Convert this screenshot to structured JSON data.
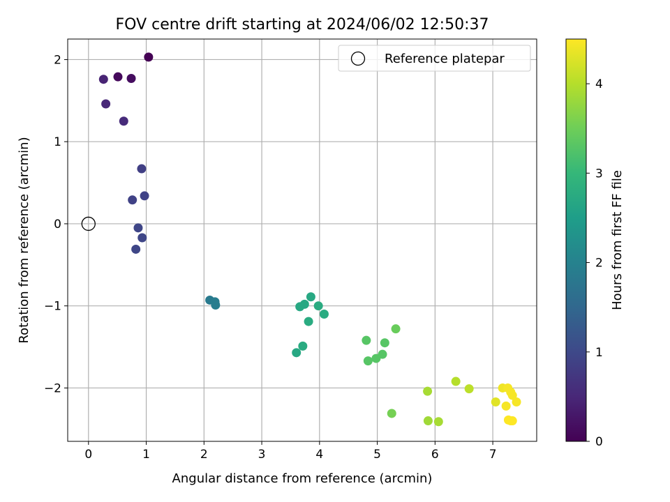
{
  "chart_data": {
    "type": "scatter",
    "title": "FOV centre drift starting at 2024/06/02 12:50:37",
    "xlabel": "Angular distance from reference (arcmin)",
    "ylabel": "Rotation from reference (arcmin)",
    "xlim": [
      -0.36,
      7.76
    ],
    "ylim": [
      -2.65,
      2.25
    ],
    "xticks": [
      0,
      1,
      2,
      3,
      4,
      5,
      6,
      7
    ],
    "yticks": [
      -2,
      -1,
      0,
      1,
      2
    ],
    "ytick_labels": [
      "−2",
      "−1",
      "0",
      "1",
      "2"
    ],
    "grid": true,
    "legend": {
      "placement": "top-right",
      "entries": [
        {
          "label": "Reference platepar",
          "marker": "open-circle"
        }
      ]
    },
    "reference_point": {
      "x": 0,
      "y": 0
    },
    "colorbar": {
      "label": "Hours from first FF file",
      "colormap": "viridis",
      "range": [
        0,
        4.5
      ],
      "ticks": [
        0,
        1,
        2,
        3,
        4
      ],
      "stops": [
        "#440154",
        "#482878",
        "#3e4989",
        "#31688e",
        "#26828e",
        "#1f9e89",
        "#35b779",
        "#6ece58",
        "#b5de2b",
        "#fde725"
      ]
    },
    "points": [
      {
        "x": 1.04,
        "y": 2.03,
        "t": 0.0
      },
      {
        "x": 0.51,
        "y": 1.79,
        "t": 0.1
      },
      {
        "x": 0.74,
        "y": 1.77,
        "t": 0.15
      },
      {
        "x": 0.26,
        "y": 1.76,
        "t": 0.45
      },
      {
        "x": 0.3,
        "y": 1.46,
        "t": 0.5
      },
      {
        "x": 0.61,
        "y": 1.25,
        "t": 0.55
      },
      {
        "x": 0.92,
        "y": 0.67,
        "t": 0.85
      },
      {
        "x": 0.97,
        "y": 0.34,
        "t": 0.9
      },
      {
        "x": 0.76,
        "y": 0.29,
        "t": 0.9
      },
      {
        "x": 0.86,
        "y": -0.05,
        "t": 0.95
      },
      {
        "x": 0.93,
        "y": -0.17,
        "t": 0.95
      },
      {
        "x": 0.82,
        "y": -0.31,
        "t": 0.95
      },
      {
        "x": 2.1,
        "y": -0.93,
        "t": 1.85
      },
      {
        "x": 2.19,
        "y": -0.95,
        "t": 1.9
      },
      {
        "x": 2.2,
        "y": -0.99,
        "t": 1.9
      },
      {
        "x": 3.85,
        "y": -0.89,
        "t": 2.7
      },
      {
        "x": 3.74,
        "y": -0.98,
        "t": 2.7
      },
      {
        "x": 3.66,
        "y": -1.01,
        "t": 2.7
      },
      {
        "x": 3.98,
        "y": -1.0,
        "t": 2.75
      },
      {
        "x": 4.08,
        "y": -1.1,
        "t": 2.75
      },
      {
        "x": 3.81,
        "y": -1.19,
        "t": 2.75
      },
      {
        "x": 3.71,
        "y": -1.49,
        "t": 2.75
      },
      {
        "x": 3.6,
        "y": -1.57,
        "t": 2.7
      },
      {
        "x": 4.81,
        "y": -1.42,
        "t": 3.3
      },
      {
        "x": 5.13,
        "y": -1.45,
        "t": 3.3
      },
      {
        "x": 5.32,
        "y": -1.28,
        "t": 3.45
      },
      {
        "x": 5.09,
        "y": -1.59,
        "t": 3.3
      },
      {
        "x": 4.98,
        "y": -1.64,
        "t": 3.3
      },
      {
        "x": 4.84,
        "y": -1.67,
        "t": 3.3
      },
      {
        "x": 5.25,
        "y": -2.31,
        "t": 3.55
      },
      {
        "x": 5.87,
        "y": -2.04,
        "t": 3.9
      },
      {
        "x": 5.88,
        "y": -2.4,
        "t": 3.85
      },
      {
        "x": 6.06,
        "y": -2.41,
        "t": 3.9
      },
      {
        "x": 6.36,
        "y": -1.92,
        "t": 4.0
      },
      {
        "x": 6.59,
        "y": -2.01,
        "t": 4.05
      },
      {
        "x": 7.05,
        "y": -2.17,
        "t": 4.3
      },
      {
        "x": 7.17,
        "y": -2.0,
        "t": 4.4
      },
      {
        "x": 7.26,
        "y": -2.0,
        "t": 4.45
      },
      {
        "x": 7.31,
        "y": -2.05,
        "t": 4.45
      },
      {
        "x": 7.34,
        "y": -2.09,
        "t": 4.45
      },
      {
        "x": 7.41,
        "y": -2.17,
        "t": 4.45
      },
      {
        "x": 7.23,
        "y": -2.22,
        "t": 4.45
      },
      {
        "x": 7.27,
        "y": -2.39,
        "t": 4.5
      },
      {
        "x": 7.31,
        "y": -2.4,
        "t": 4.5
      },
      {
        "x": 7.34,
        "y": -2.4,
        "t": 4.5
      }
    ]
  }
}
